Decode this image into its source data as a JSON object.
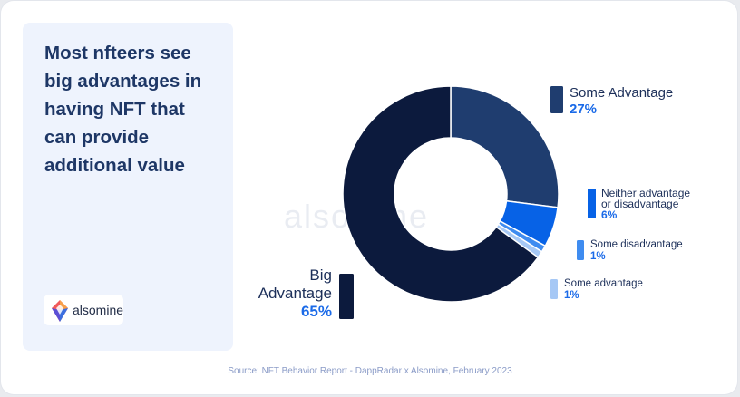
{
  "headline": "Most nfteers see\nbig advantages in\nhaving NFT that\ncan provide\nadditional value",
  "brand": {
    "name": "alsomine"
  },
  "watermark": "alsomine",
  "source": "Source: NFT Behavior Report - DappRadar x Alsomine, February 2023",
  "colors": {
    "big_advantage": "#0c1a3d",
    "some_advantage_27": "#1f3d6f",
    "neither": "#0762e6",
    "some_disadvantage": "#3f8cf0",
    "some_advantage_1": "#a6c8f5",
    "percent_text": "#1a6ae8",
    "label_text": "#1c2f59"
  },
  "chart_data": {
    "type": "pie",
    "donut": true,
    "slices": [
      {
        "label": "Some Advantage",
        "value": 27,
        "value_label": "27%",
        "color": "#1f3d6f"
      },
      {
        "label": "Neither advantage or disadvantage",
        "value": 6,
        "value_label": "6%",
        "color": "#0762e6"
      },
      {
        "label": "Some disadvantage",
        "value": 1,
        "value_label": "1%",
        "color": "#3f8cf0"
      },
      {
        "label": "Some advantage",
        "value": 1,
        "value_label": "1%",
        "color": "#a6c8f5"
      },
      {
        "label": "Big Advantage",
        "value": 65,
        "value_label": "65%",
        "color": "#0c1a3d"
      }
    ]
  }
}
